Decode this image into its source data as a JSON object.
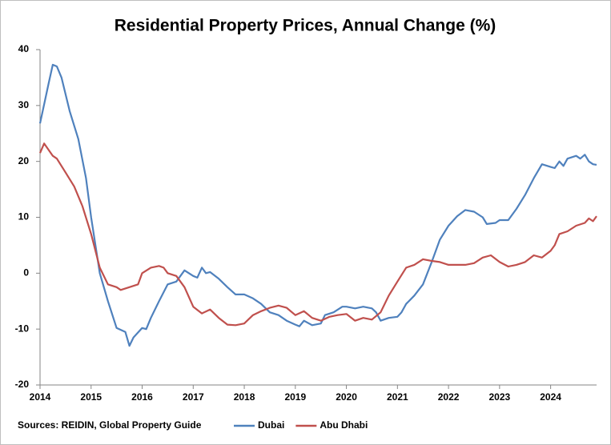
{
  "chart_data": {
    "type": "line",
    "title": "Residential Property Prices, Annual Change (%)",
    "source": "Sources: REIDIN, Global Property Guide",
    "xlim": [
      2014,
      2024.9
    ],
    "xticks": [
      2014,
      2015,
      2016,
      2017,
      2018,
      2019,
      2020,
      2021,
      2022,
      2023,
      2024
    ],
    "ylim": [
      -20,
      40
    ],
    "yticks": [
      -20,
      -10,
      0,
      10,
      20,
      30,
      40
    ],
    "grid": false,
    "legend": "bottom",
    "series": [
      {
        "name": "Dubai",
        "color": "#4f81bd",
        "x": [
          2014.0,
          2014.17,
          2014.25,
          2014.33,
          2014.42,
          2014.58,
          2014.75,
          2014.9,
          2015.0,
          2015.17,
          2015.33,
          2015.5,
          2015.67,
          2015.75,
          2015.83,
          2016.0,
          2016.08,
          2016.17,
          2016.33,
          2016.5,
          2016.67,
          2016.83,
          2017.0,
          2017.08,
          2017.17,
          2017.25,
          2017.33,
          2017.5,
          2017.67,
          2017.83,
          2018.0,
          2018.17,
          2018.33,
          2018.5,
          2018.67,
          2018.83,
          2019.0,
          2019.08,
          2019.17,
          2019.33,
          2019.5,
          2019.58,
          2019.75,
          2019.92,
          2020.0,
          2020.17,
          2020.33,
          2020.5,
          2020.58,
          2020.67,
          2020.83,
          2021.0,
          2021.08,
          2021.17,
          2021.33,
          2021.5,
          2021.67,
          2021.83,
          2022.0,
          2022.17,
          2022.33,
          2022.5,
          2022.67,
          2022.75,
          2022.92,
          2023.0,
          2023.17,
          2023.33,
          2023.5,
          2023.67,
          2023.83,
          2024.0,
          2024.08,
          2024.17,
          2024.25,
          2024.33,
          2024.5,
          2024.58,
          2024.67,
          2024.75,
          2024.83,
          2024.9
        ],
        "values": [
          26.8,
          34,
          37.3,
          37,
          35,
          29,
          24,
          17,
          10,
          0,
          -5,
          -9.8,
          -10.5,
          -13,
          -11.5,
          -9.8,
          -10,
          -8,
          -5,
          -2,
          -1.5,
          0.5,
          -0.5,
          -0.8,
          1,
          0,
          0.2,
          -1,
          -2.5,
          -3.8,
          -3.8,
          -4.5,
          -5.5,
          -7,
          -7.5,
          -8.5,
          -9.2,
          -9.5,
          -8.5,
          -9.3,
          -9,
          -7.5,
          -7,
          -6,
          -6,
          -6.3,
          -6,
          -6.3,
          -7,
          -8.5,
          -8,
          -7.8,
          -7,
          -5.5,
          -4,
          -2,
          2,
          6,
          8.5,
          10.2,
          11.3,
          11,
          10,
          8.8,
          9,
          9.5,
          9.5,
          11.5,
          14,
          17,
          19.5,
          19,
          18.8,
          20,
          19.2,
          20.5,
          21,
          20.5,
          21.2,
          20,
          19.5,
          19.4
        ]
      },
      {
        "name": "Abu Dhabi",
        "color": "#c0504d",
        "x": [
          2014.0,
          2014.08,
          2014.25,
          2014.33,
          2014.5,
          2014.67,
          2014.83,
          2015.0,
          2015.17,
          2015.33,
          2015.5,
          2015.58,
          2015.75,
          2015.92,
          2016.0,
          2016.17,
          2016.33,
          2016.42,
          2016.5,
          2016.67,
          2016.83,
          2017.0,
          2017.17,
          2017.33,
          2017.5,
          2017.67,
          2017.83,
          2018.0,
          2018.17,
          2018.33,
          2018.5,
          2018.67,
          2018.83,
          2019.0,
          2019.17,
          2019.33,
          2019.5,
          2019.67,
          2019.83,
          2020.0,
          2020.17,
          2020.33,
          2020.5,
          2020.67,
          2020.83,
          2021.0,
          2021.17,
          2021.33,
          2021.5,
          2021.67,
          2021.83,
          2022.0,
          2022.17,
          2022.33,
          2022.5,
          2022.67,
          2022.83,
          2023.0,
          2023.17,
          2023.33,
          2023.5,
          2023.67,
          2023.83,
          2024.0,
          2024.08,
          2024.17,
          2024.33,
          2024.5,
          2024.67,
          2024.75,
          2024.83,
          2024.9
        ],
        "values": [
          21.5,
          23.2,
          21,
          20.5,
          18,
          15.5,
          12,
          7,
          1,
          -2,
          -2.5,
          -3,
          -2.5,
          -2,
          0,
          1,
          1.3,
          1,
          0,
          -0.5,
          -2.5,
          -6,
          -7.2,
          -6.5,
          -8,
          -9.2,
          -9.3,
          -9,
          -7.5,
          -6.8,
          -6.2,
          -5.8,
          -6.2,
          -7.5,
          -6.8,
          -8,
          -8.5,
          -7.8,
          -7.5,
          -7.3,
          -8.5,
          -8,
          -8.3,
          -7,
          -4,
          -1.5,
          1,
          1.5,
          2.5,
          2.2,
          2,
          1.5,
          1.5,
          1.5,
          1.8,
          2.8,
          3.2,
          2,
          1.2,
          1.5,
          2,
          3.2,
          2.8,
          4,
          5,
          7,
          7.5,
          8.5,
          9,
          9.8,
          9.3,
          10.2
        ]
      }
    ]
  }
}
